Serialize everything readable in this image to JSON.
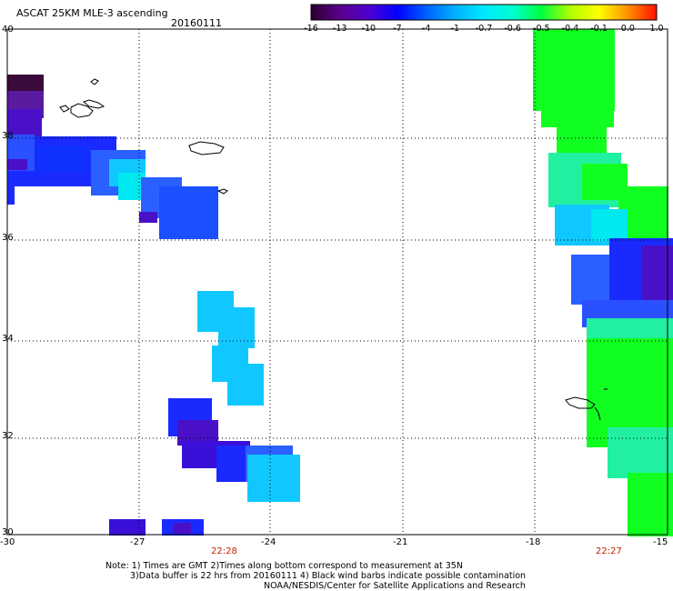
{
  "header": {
    "title": "ASCAT 25KM MLE-3 ascending",
    "date": "20160111"
  },
  "colorbar": {
    "labels": [
      "-16",
      "-13",
      "-10",
      "-7",
      "-4",
      "-1",
      "-0.7",
      "-0.6",
      "-0.5",
      "-0.4",
      "-0.1",
      "0.0",
      "1.0"
    ],
    "colors": [
      "#2a0030",
      "#5a008a",
      "#5000d0",
      "#0000ff",
      "#0060ff",
      "#00b0ff",
      "#00e8ff",
      "#00ffd0",
      "#00ff40",
      "#b0ff00",
      "#ffff00",
      "#ff9000",
      "#ff1000"
    ]
  },
  "axes": {
    "lat_labels": [
      "40",
      "38",
      "36",
      "34",
      "32",
      "30"
    ],
    "lon_labels": [
      "-30",
      "-27",
      "-24",
      "-21",
      "-18",
      "-15"
    ]
  },
  "times": [
    "22:28",
    "22:27"
  ],
  "notes": [
    "Note: 1) Times are GMT 2)Times along bottom correspond to measurement at 35N",
    "3)Data buffer is 22 hrs from 20160111 4) Black wind barbs indicate possible contamination",
    "NOAA/NESDIS/Center for Satellite Applications and Research"
  ],
  "colors": {
    "dark_purple": "#3a0a3a",
    "purple": "#4a10c8",
    "blue": "#1a2aff",
    "mid_blue": "#2a60ff",
    "light_blue": "#10c8ff",
    "cyan": "#00e8f0",
    "green": "#10ff20",
    "aqua_green": "#20f0a0"
  }
}
